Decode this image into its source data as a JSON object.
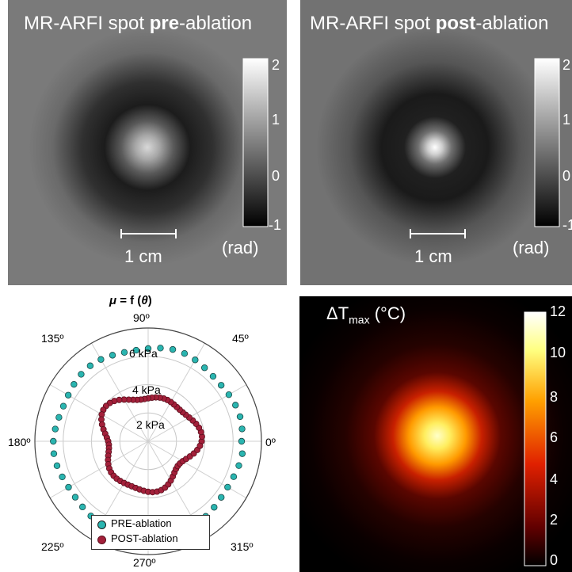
{
  "panel_pre": {
    "title_a": "MR-ARFI spot ",
    "title_b": "pre",
    "title_c": "-ablation",
    "scale_label": "1 cm",
    "unit": "(rad)",
    "ticks": [
      "2",
      "1",
      "0",
      "-1"
    ]
  },
  "panel_post": {
    "title_a": "MR-ARFI spot ",
    "title_b": "post",
    "title_c": "-ablation",
    "scale_label": "1 cm",
    "unit": "(rad)",
    "ticks": [
      "2",
      "1",
      "0",
      "-1"
    ]
  },
  "polar": {
    "title_mu": "μ",
    "title_eq": " = f (",
    "title_theta": "θ",
    "title_end": ")",
    "angle_labels": [
      "90º",
      "45º",
      "0º",
      "315º",
      "270º",
      "225º",
      "180º",
      "135º"
    ],
    "radial_labels": [
      "6 kPa",
      "4 kPa",
      "2 kPa"
    ],
    "legend": [
      "PRE-ablation",
      "POST-ablation"
    ],
    "pre_color": "#2ab5b0",
    "post_color": "#a3203a"
  },
  "chart_data": {
    "type": "scatter",
    "title": "μ = f (θ)",
    "radial_unit": "kPa",
    "radial_ticks": [
      2,
      4,
      6
    ],
    "angle_ticks_deg": [
      0,
      45,
      90,
      135,
      180,
      225,
      270,
      315
    ],
    "series": [
      {
        "name": "PRE-ablation",
        "theta_deg_step": 7.5,
        "r_kpa_approx": 6.6
      },
      {
        "name": "POST-ablation",
        "theta_deg_step": 5,
        "r_kpa_approx": 3.3
      }
    ]
  },
  "panel_temp": {
    "title_delta": "ΔT",
    "title_sub": "max",
    "title_unit": " (°C)",
    "ticks": [
      "12",
      "10",
      "8",
      "6",
      "4",
      "2",
      "0"
    ]
  }
}
